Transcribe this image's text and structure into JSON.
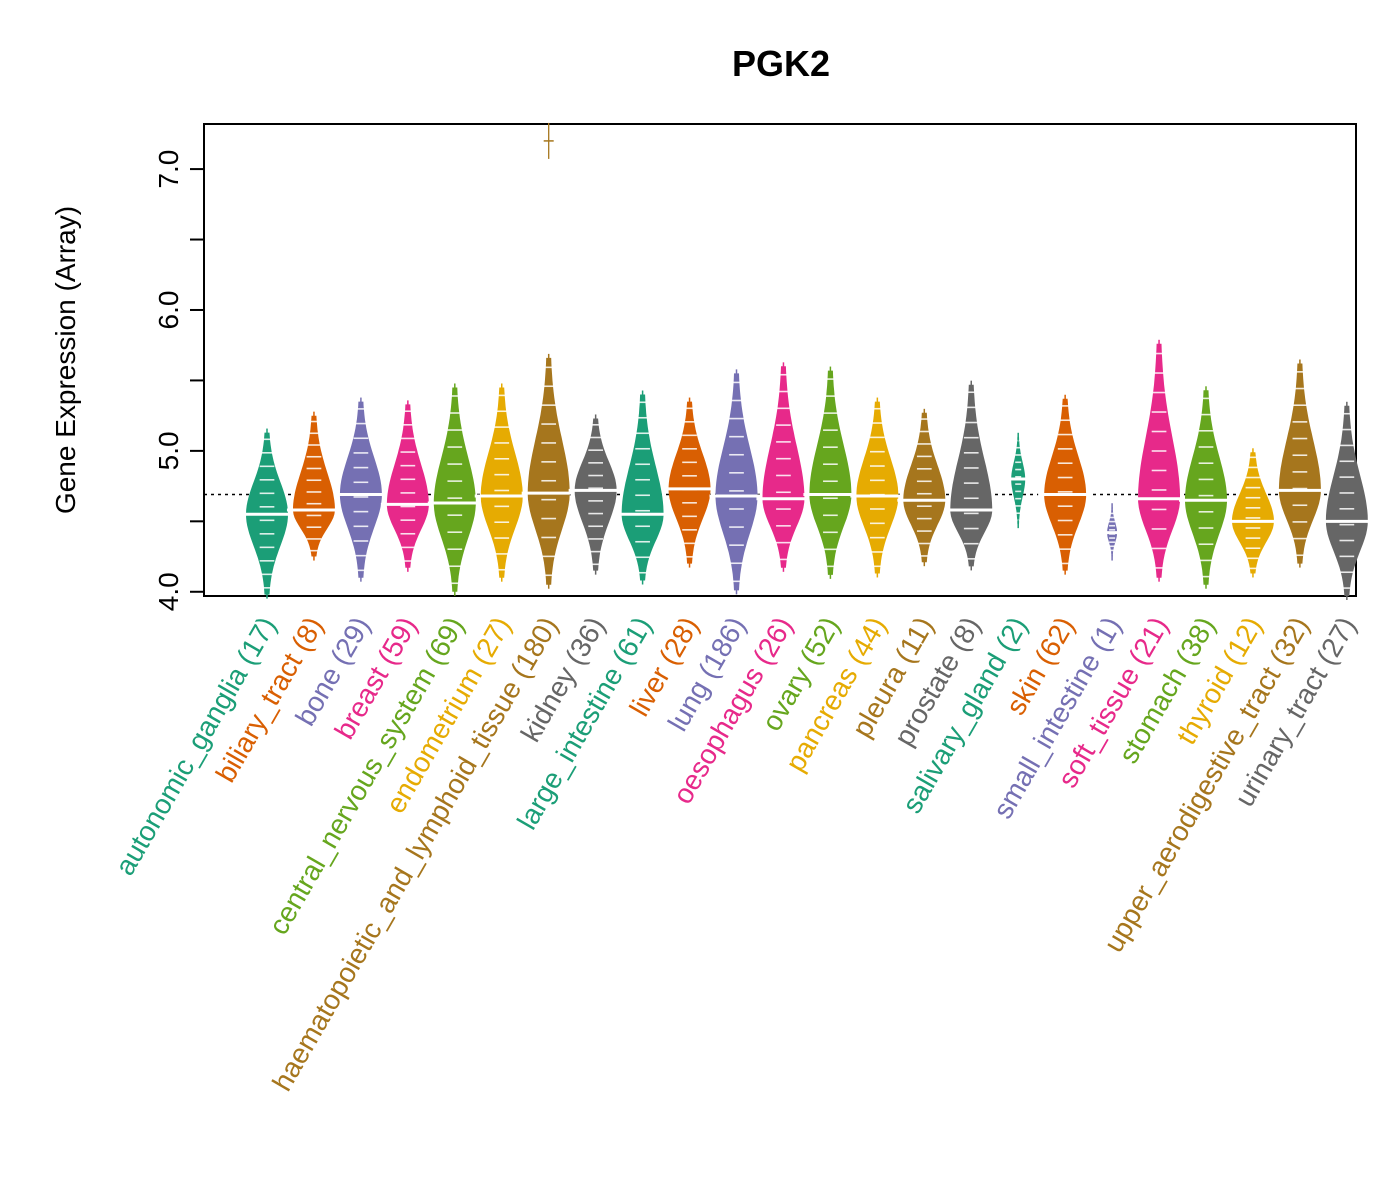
{
  "chart_data": {
    "type": "violin",
    "title": "PGK2",
    "xlabel": "",
    "ylabel": "Gene Expression (Array)",
    "ylim": [
      3.97,
      7.32
    ],
    "yticks": [
      4.0,
      4.5,
      5.0,
      5.5,
      6.0,
      6.5,
      7.0
    ],
    "ytick_labels": [
      "4.0",
      "",
      "5.0",
      "",
      "6.0",
      "",
      "7.0"
    ],
    "reference_line": 4.69,
    "grid": false,
    "legend": "none",
    "categories": [
      {
        "name": "autonomic_ganglia",
        "n": "(17)",
        "color": "#1B9E77",
        "min": 3.98,
        "max": 5.13,
        "median": 4.55
      },
      {
        "name": "biliary_tract",
        "n": "(8)",
        "color": "#D95F02",
        "min": 4.25,
        "max": 5.25,
        "median": 4.58
      },
      {
        "name": "bone",
        "n": "(29)",
        "color": "#7570B3",
        "min": 4.1,
        "max": 5.35,
        "median": 4.69
      },
      {
        "name": "breast",
        "n": "(59)",
        "color": "#E7298A",
        "min": 4.17,
        "max": 5.33,
        "median": 4.62
      },
      {
        "name": "central_nervous_system",
        "n": "(69)",
        "color": "#66A61E",
        "min": 4.0,
        "max": 5.45,
        "median": 4.63
      },
      {
        "name": "endometrium",
        "n": "(27)",
        "color": "#E6AB02",
        "min": 4.1,
        "max": 5.45,
        "median": 4.68
      },
      {
        "name": "haematopoietic_and_lymphoid_tissue",
        "n": "(180)",
        "color": "#A6761D",
        "min": 4.05,
        "max": 5.66,
        "median": 4.7,
        "outliers": [
          7.2
        ]
      },
      {
        "name": "kidney",
        "n": "(36)",
        "color": "#666666",
        "min": 4.15,
        "max": 5.23,
        "median": 4.72
      },
      {
        "name": "large_intestine",
        "n": "(61)",
        "color": "#1B9E77",
        "min": 4.08,
        "max": 5.4,
        "median": 4.55
      },
      {
        "name": "liver",
        "n": "(28)",
        "color": "#D95F02",
        "min": 4.2,
        "max": 5.35,
        "median": 4.73
      },
      {
        "name": "lung",
        "n": "(186)",
        "color": "#7570B3",
        "min": 4.01,
        "max": 5.55,
        "median": 4.68
      },
      {
        "name": "oesophagus",
        "n": "(26)",
        "color": "#E7298A",
        "min": 4.17,
        "max": 5.6,
        "median": 4.66
      },
      {
        "name": "ovary",
        "n": "(52)",
        "color": "#66A61E",
        "min": 4.12,
        "max": 5.57,
        "median": 4.69
      },
      {
        "name": "pancreas",
        "n": "(44)",
        "color": "#E6AB02",
        "min": 4.13,
        "max": 5.35,
        "median": 4.68
      },
      {
        "name": "pleura",
        "n": "(11)",
        "color": "#A6761D",
        "min": 4.21,
        "max": 5.27,
        "median": 4.65
      },
      {
        "name": "prostate",
        "n": "(8)",
        "color": "#666666",
        "min": 4.18,
        "max": 5.47,
        "median": 4.58
      },
      {
        "name": "salivary_gland",
        "n": "(2)",
        "color": "#1B9E77",
        "min": 4.48,
        "max": 5.1,
        "median": 4.8
      },
      {
        "name": "skin",
        "n": "(62)",
        "color": "#D95F02",
        "min": 4.15,
        "max": 5.37,
        "median": 4.69
      },
      {
        "name": "small_intestine",
        "n": "(1)",
        "color": "#7570B3",
        "min": 4.25,
        "max": 4.6,
        "median": 4.42
      },
      {
        "name": "soft_tissue",
        "n": "(21)",
        "color": "#E7298A",
        "min": 4.1,
        "max": 5.76,
        "median": 4.66
      },
      {
        "name": "stomach",
        "n": "(38)",
        "color": "#66A61E",
        "min": 4.05,
        "max": 5.43,
        "median": 4.65
      },
      {
        "name": "thyroid",
        "n": "(12)",
        "color": "#E6AB02",
        "min": 4.13,
        "max": 4.99,
        "median": 4.5
      },
      {
        "name": "upper_aerodigestive_tract",
        "n": "(32)",
        "color": "#A6761D",
        "min": 4.2,
        "max": 5.62,
        "median": 4.72
      },
      {
        "name": "urinary_tract",
        "n": "(27)",
        "color": "#666666",
        "min": 3.97,
        "max": 5.32,
        "median": 4.5
      }
    ]
  }
}
